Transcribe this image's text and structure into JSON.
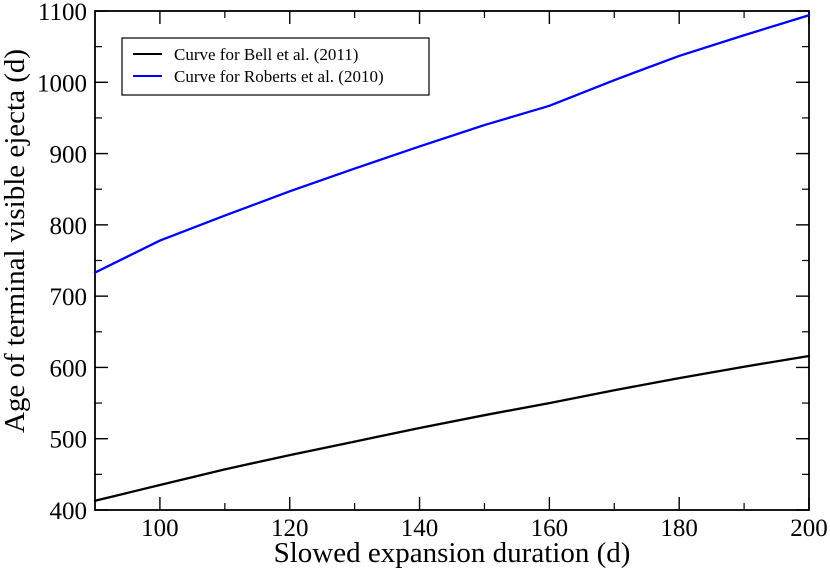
{
  "chart_data": {
    "type": "line",
    "title": "",
    "xlabel": "Slowed expansion duration (d)",
    "ylabel": "Age of terminal visible ejecta (d)",
    "xlim": [
      90,
      200
    ],
    "ylim": [
      400,
      1100
    ],
    "x_major_ticks": [
      100,
      120,
      140,
      160,
      180,
      200
    ],
    "x_minor_ticks": [
      110,
      130,
      150,
      170,
      190
    ],
    "y_major_ticks": [
      400,
      500,
      600,
      700,
      800,
      900,
      1000,
      1100
    ],
    "y_minor_ticks": [
      450,
      550,
      650,
      750,
      850,
      950,
      1050
    ],
    "x_tick_labels": [
      "100",
      "120",
      "140",
      "160",
      "180",
      "200"
    ],
    "y_tick_labels": [
      "400",
      "500",
      "600",
      "700",
      "800",
      "900",
      "1000",
      "1100"
    ],
    "grid": false,
    "legend_position": "top-left",
    "series": [
      {
        "name": "Curve for Bell et al. (2011)",
        "color": "#000000",
        "x": [
          90,
          100,
          110,
          120,
          130,
          140,
          150,
          160,
          170,
          180,
          190,
          200
        ],
        "y": [
          413,
          435,
          457,
          477,
          496,
          515,
          533,
          550,
          568,
          585,
          601,
          616
        ]
      },
      {
        "name": "Curve for Roberts et al. (2010)",
        "color": "#0000ff",
        "x": [
          90,
          100,
          110,
          120,
          130,
          140,
          150,
          160,
          170,
          180,
          190,
          200
        ],
        "y": [
          733,
          778,
          813,
          847,
          879,
          910,
          940,
          967,
          1003,
          1037,
          1066,
          1094
        ]
      }
    ]
  }
}
